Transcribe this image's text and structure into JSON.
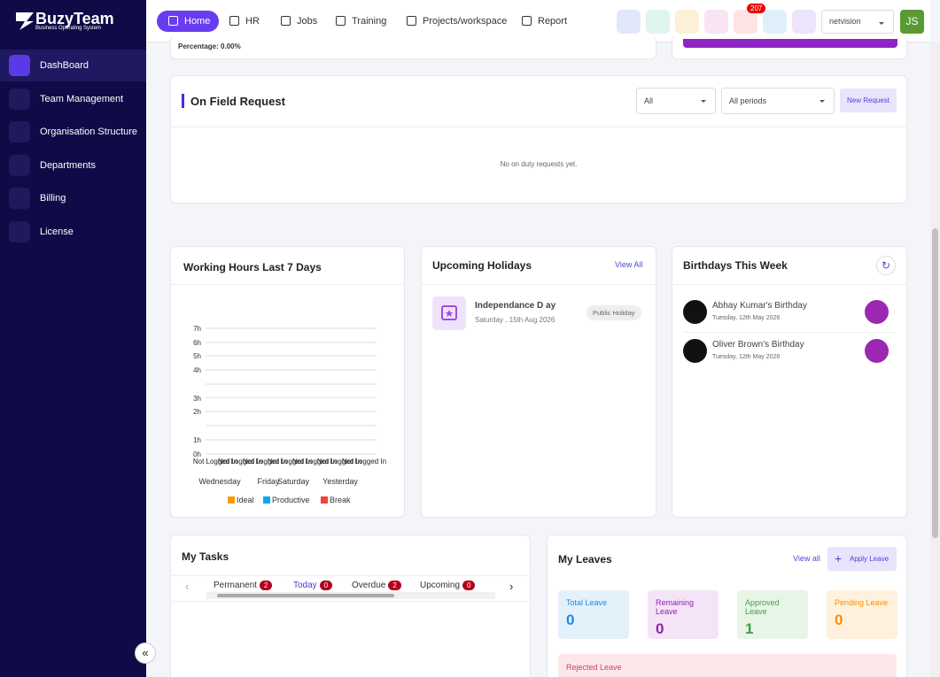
{
  "brand": {
    "name": "BuzyTeam",
    "tagline": "Business Operating System"
  },
  "sidebar": [
    "DashBoard",
    "Team Management",
    "Organisation Structure",
    "Departments",
    "Billing",
    "License"
  ],
  "topnav": [
    "Home",
    "HR",
    "Jobs",
    "Training",
    "Projects/workspace",
    "Report"
  ],
  "notification_count": 207,
  "org_select": "netvision",
  "avatar": "JS",
  "top_partial": {
    "percentage": "Percentage: 0.00%"
  },
  "on_field": {
    "title": "On Field Request",
    "filters": [
      "All",
      "All periods"
    ],
    "button": "New Request",
    "empty": "No on duty requests yet."
  },
  "working_hours": {
    "title": "Working Hours Last 7 Days",
    "yticks": [
      "0h",
      "1h",
      "2h",
      "3h",
      "4h",
      "5h",
      "6h",
      "7h"
    ],
    "bar_labels": [
      "Not Logged In",
      "Not Logged In",
      "Not Logged In",
      "Not Logged In",
      "Not Logged In",
      "Not Logged In",
      "Not Logged In"
    ],
    "days": [
      "Wednesday",
      "Friday",
      "Saturday",
      "Yesterday"
    ],
    "legend": [
      {
        "name": "Ideal",
        "color": "#ff9800"
      },
      {
        "name": "Productive",
        "color": "#03a9f4"
      },
      {
        "name": "Break",
        "color": "#f44336"
      }
    ]
  },
  "holidays": {
    "title": "Upcoming Holidays",
    "link": "View All",
    "items": [
      {
        "name": "Independance D ay",
        "date": "Saturday , 15th Aug 2026",
        "tag": "Public Holiday"
      }
    ]
  },
  "birthdays": {
    "title": "Birthdays This Week",
    "items": [
      {
        "name": "Abhay Kumar's Birthday",
        "date": "Tuesday, 12th May 2026"
      },
      {
        "name": "Oliver Brown's Birthday",
        "date": "Tuesday, 12th May 2026"
      }
    ]
  },
  "tasks": {
    "title": "My Tasks",
    "tabs": [
      {
        "label": "Permanent",
        "count": 2
      },
      {
        "label": "Today",
        "count": 0
      },
      {
        "label": "Overdue",
        "count": 2
      },
      {
        "label": "Upcoming",
        "count": 0
      }
    ]
  },
  "leaves": {
    "title": "My Leaves",
    "link": "View all",
    "button": "Apply Leave",
    "cards": [
      {
        "label": "Total Leave",
        "value": 0
      },
      {
        "label": "Remaining Leave",
        "value": 0
      },
      {
        "label": "Approved Leave",
        "value": 1
      },
      {
        "label": "Pending Leave",
        "value": 0
      }
    ],
    "rejected": "Rejected Leave"
  }
}
